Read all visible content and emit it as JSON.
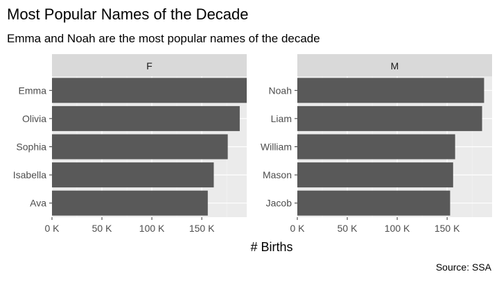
{
  "chart_data": {
    "type": "bar",
    "orientation": "horizontal",
    "title": "Most Popular Names of the Decade",
    "subtitle": "Emma and Noah are the most popular names of the decade",
    "xlabel": "# Births",
    "ylabel": "",
    "caption": "Source: SSA",
    "xlim": [
      0,
      195000
    ],
    "x_ticks": [
      {
        "value": 0,
        "label": "0 K"
      },
      {
        "value": 50000,
        "label": "50 K"
      },
      {
        "value": 100000,
        "label": "100 K"
      },
      {
        "value": 150000,
        "label": "150 K"
      }
    ],
    "grid": true,
    "legend": "none",
    "bar_color": "#595959",
    "panel_background": "#ebebeb",
    "strip_background": "#d9d9d9",
    "panels": [
      {
        "facet": "F",
        "categories": [
          "Emma",
          "Olivia",
          "Sophia",
          "Isabella",
          "Ava"
        ],
        "values": [
          195000,
          188000,
          176000,
          162000,
          156000
        ]
      },
      {
        "facet": "M",
        "categories": [
          "Noah",
          "Liam",
          "William",
          "Mason",
          "Jacob"
        ],
        "values": [
          187000,
          185000,
          158000,
          156000,
          153000
        ]
      }
    ]
  }
}
